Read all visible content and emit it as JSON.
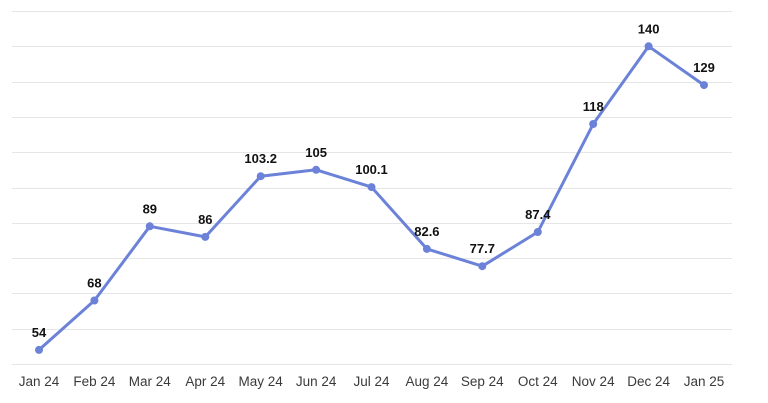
{
  "chart_data": {
    "type": "line",
    "categories": [
      "Jan 24",
      "Feb 24",
      "Mar 24",
      "Apr 24",
      "May 24",
      "Jun 24",
      "Jul 24",
      "Aug 24",
      "Sep 24",
      "Oct 24",
      "Nov 24",
      "Dec 24",
      "Jan 25"
    ],
    "values": [
      54,
      68,
      89,
      86,
      103.2,
      105,
      100.1,
      82.6,
      77.7,
      87.4,
      118,
      140,
      129
    ],
    "data_labels": [
      "54",
      "68",
      "89",
      "86",
      "103.2",
      "105",
      "100.1",
      "82.6",
      "77.7",
      "87.4",
      "118",
      "140",
      "129"
    ],
    "title": "",
    "xlabel": "",
    "ylabel": "",
    "ylim": [
      50,
      150
    ],
    "grid": true,
    "y_gridline_step": 10,
    "y_tick_labels_visible": false,
    "legend": "none",
    "colors": {
      "line": "#6b82d8",
      "marker": "#6b82d8",
      "grid": "#e6e6e6"
    }
  }
}
